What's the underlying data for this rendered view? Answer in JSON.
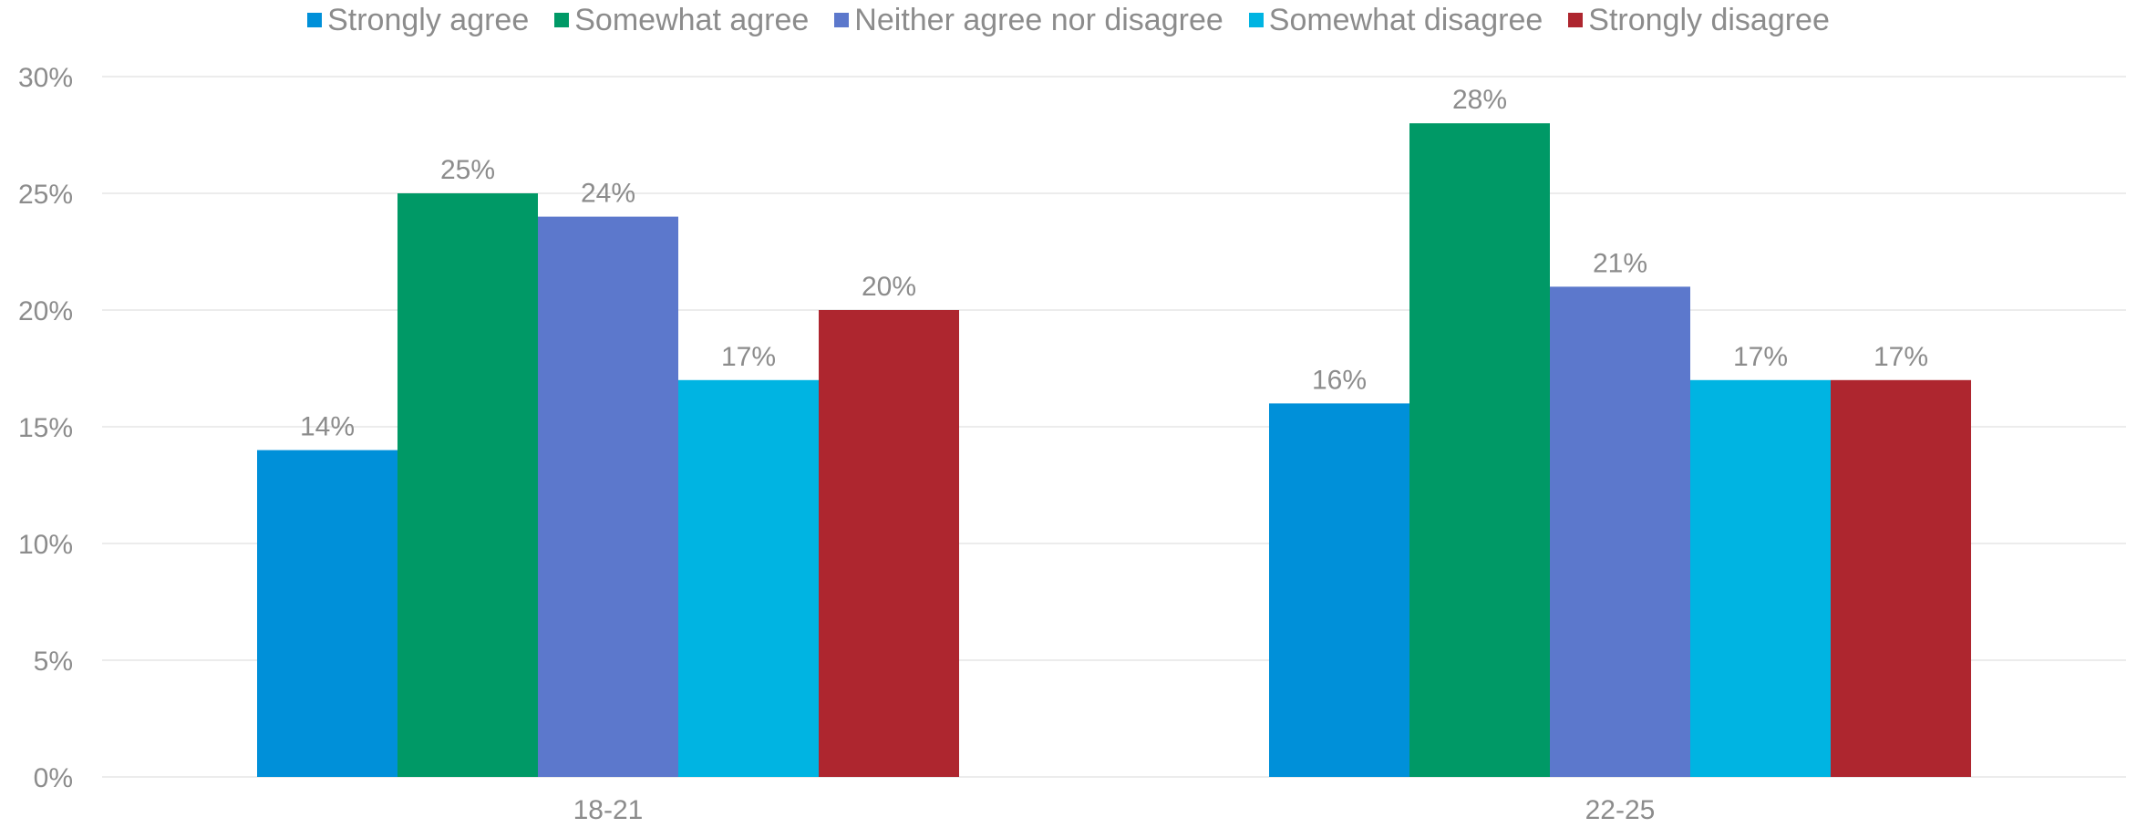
{
  "chart_data": {
    "type": "bar",
    "title": "",
    "xlabel": "",
    "ylabel": "",
    "categories": [
      "18-21",
      "22-25"
    ],
    "series": [
      {
        "name": "Strongly agree",
        "color": "#0090d9",
        "values": [
          14,
          16
        ],
        "labels": [
          "14%",
          "16%"
        ]
      },
      {
        "name": "Somewhat agree",
        "color": "#009966",
        "values": [
          25,
          28
        ],
        "labels": [
          "25%",
          "28%"
        ]
      },
      {
        "name": "Neither agree nor disagree",
        "color": "#5c78cc",
        "values": [
          24,
          21
        ],
        "labels": [
          "24%",
          "21%"
        ]
      },
      {
        "name": "Somewhat disagree",
        "color": "#00b4e2",
        "values": [
          17,
          17
        ],
        "labels": [
          "17%",
          "17%"
        ]
      },
      {
        "name": "Strongly disagree",
        "color": "#ae262f",
        "values": [
          20,
          17
        ],
        "labels": [
          "20%",
          "17%"
        ]
      }
    ],
    "ylim": [
      0,
      30
    ],
    "yticks": [
      0,
      5,
      10,
      15,
      20,
      25,
      30
    ],
    "ytick_labels": [
      "0%",
      "5%",
      "10%",
      "15%",
      "20%",
      "25%",
      "30%"
    ],
    "grid": true,
    "legend_position": "top",
    "text_color": "#8c8c8c",
    "grid_color": "#e6e6e6"
  }
}
